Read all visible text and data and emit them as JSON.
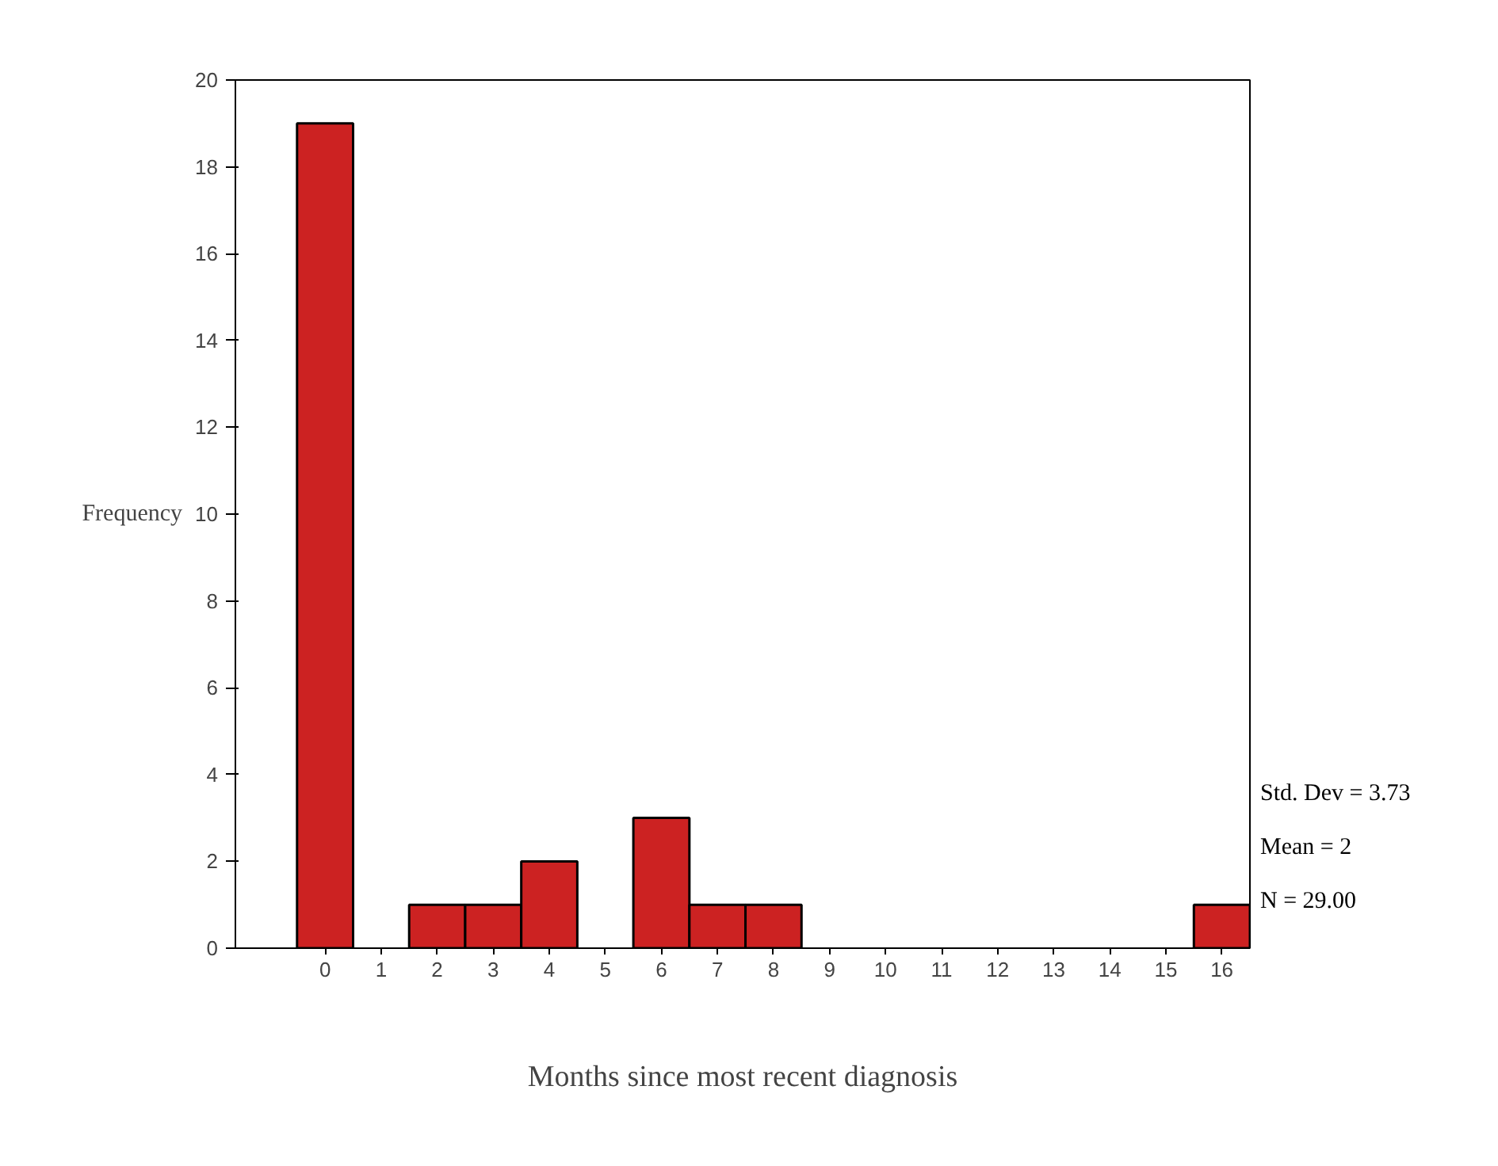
{
  "chart_data": {
    "type": "histogram",
    "xlabel": "Months since most recent diagnosis",
    "ylabel": "Frequency",
    "bins": [
      -0.5,
      0.5,
      1.5,
      2.5,
      3.5,
      4.5,
      5.5,
      6.5,
      7.5,
      8.5,
      9.5,
      10.5,
      11.5,
      12.5,
      13.5,
      14.5,
      15.5,
      16.5
    ],
    "values": [
      19,
      0,
      1,
      1,
      2,
      0,
      3,
      1,
      1,
      0,
      0,
      0,
      0,
      0,
      0,
      0,
      1
    ],
    "color": "#cc2222",
    "xlim": [
      -1.6,
      16.5
    ],
    "xticks": [
      0,
      1,
      2,
      3,
      4,
      5,
      6,
      7,
      8,
      9,
      10,
      11,
      12,
      13,
      14,
      15,
      16
    ],
    "ylim": [
      0,
      20
    ],
    "yticks": [
      0,
      2,
      4,
      6,
      8,
      10,
      12,
      14,
      16,
      18,
      20
    ],
    "grid": false,
    "annotations": [
      "Std. Dev = 3.73",
      "Mean = 2",
      "N = 29.00"
    ]
  }
}
